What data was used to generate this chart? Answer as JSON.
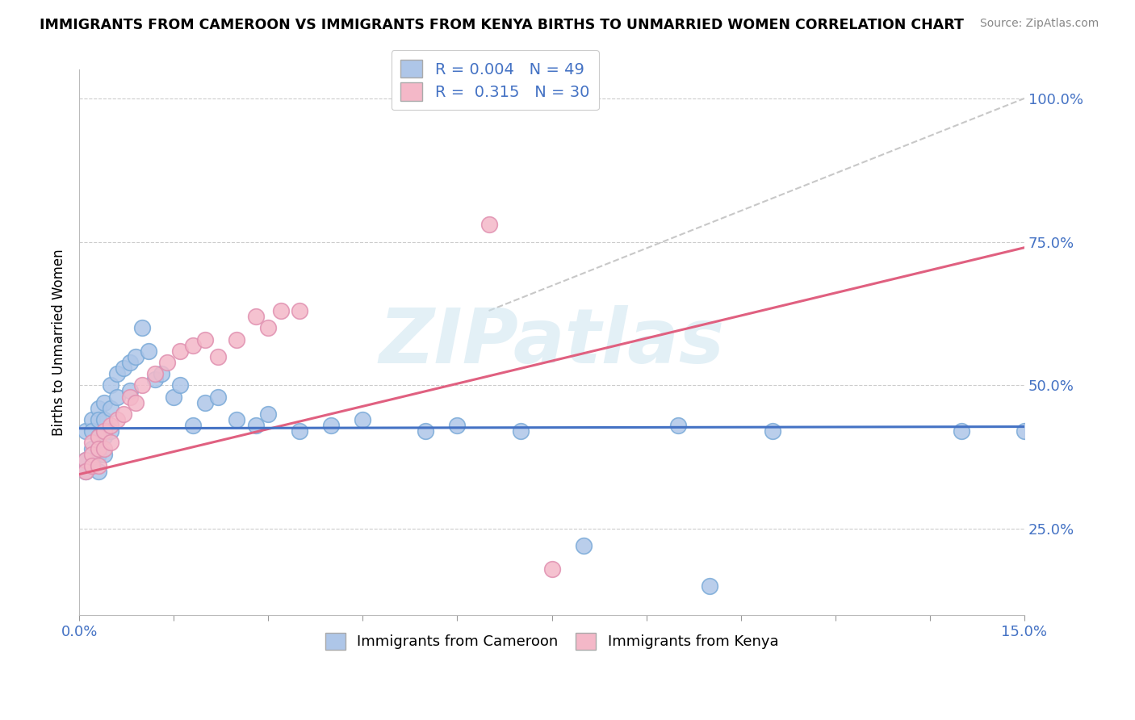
{
  "title": "IMMIGRANTS FROM CAMEROON VS IMMIGRANTS FROM KENYA BIRTHS TO UNMARRIED WOMEN CORRELATION CHART",
  "source": "Source: ZipAtlas.com",
  "ylabel": "Births to Unmarried Women",
  "watermark": "ZIPatlas",
  "xlim": [
    0.0,
    0.15
  ],
  "ylim": [
    0.1,
    1.05
  ],
  "yticks": [
    0.25,
    0.5,
    0.75,
    1.0
  ],
  "yticklabels": [
    "25.0%",
    "50.0%",
    "75.0%",
    "100.0%"
  ],
  "xtick_count": 11,
  "legend_labels": [
    "Immigrants from Cameroon",
    "Immigrants from Kenya"
  ],
  "legend_colors": [
    "#aec6e8",
    "#f4b8c8"
  ],
  "R_cameroon": 0.004,
  "N_cameroon": 49,
  "R_kenya": 0.315,
  "N_kenya": 30,
  "blue_line_color": "#4472c4",
  "pink_line_color": "#e06080",
  "gray_line_color": "#c8c8c8",
  "cameroon_dot_color": "#aec6e8",
  "kenya_dot_color": "#f4b8c8",
  "cameroon_dot_edge": "#7aaad8",
  "kenya_dot_edge": "#e090b0",
  "cameroon_x": [
    0.001,
    0.001,
    0.001,
    0.002,
    0.002,
    0.002,
    0.002,
    0.003,
    0.003,
    0.003,
    0.003,
    0.003,
    0.004,
    0.004,
    0.004,
    0.004,
    0.005,
    0.005,
    0.005,
    0.006,
    0.006,
    0.007,
    0.008,
    0.008,
    0.009,
    0.01,
    0.011,
    0.012,
    0.013,
    0.015,
    0.016,
    0.018,
    0.02,
    0.022,
    0.025,
    0.028,
    0.03,
    0.035,
    0.04,
    0.045,
    0.055,
    0.06,
    0.07,
    0.08,
    0.095,
    0.1,
    0.11,
    0.14,
    0.15
  ],
  "cameroon_y": [
    0.42,
    0.37,
    0.35,
    0.44,
    0.42,
    0.39,
    0.36,
    0.46,
    0.44,
    0.41,
    0.38,
    0.35,
    0.47,
    0.44,
    0.41,
    0.38,
    0.5,
    0.46,
    0.42,
    0.52,
    0.48,
    0.53,
    0.54,
    0.49,
    0.55,
    0.6,
    0.56,
    0.51,
    0.52,
    0.48,
    0.5,
    0.43,
    0.47,
    0.48,
    0.44,
    0.43,
    0.45,
    0.42,
    0.43,
    0.44,
    0.42,
    0.43,
    0.42,
    0.22,
    0.43,
    0.15,
    0.42,
    0.42,
    0.42
  ],
  "kenya_x": [
    0.001,
    0.001,
    0.002,
    0.002,
    0.002,
    0.003,
    0.003,
    0.003,
    0.004,
    0.004,
    0.005,
    0.005,
    0.006,
    0.007,
    0.008,
    0.009,
    0.01,
    0.012,
    0.014,
    0.016,
    0.018,
    0.02,
    0.022,
    0.025,
    0.028,
    0.03,
    0.032,
    0.035,
    0.065,
    0.075
  ],
  "kenya_y": [
    0.37,
    0.35,
    0.4,
    0.38,
    0.36,
    0.41,
    0.39,
    0.36,
    0.42,
    0.39,
    0.43,
    0.4,
    0.44,
    0.45,
    0.48,
    0.47,
    0.5,
    0.52,
    0.54,
    0.56,
    0.57,
    0.58,
    0.55,
    0.58,
    0.62,
    0.6,
    0.63,
    0.63,
    0.78,
    0.18
  ],
  "blue_line_y0": 0.425,
  "blue_line_y1": 0.428,
  "pink_line_x0": 0.0,
  "pink_line_y0": 0.345,
  "pink_line_x1": 0.15,
  "pink_line_y1": 0.74,
  "gray_line_x0": 0.065,
  "gray_line_y0": 0.63,
  "gray_line_x1": 0.15,
  "gray_line_y1": 1.0
}
